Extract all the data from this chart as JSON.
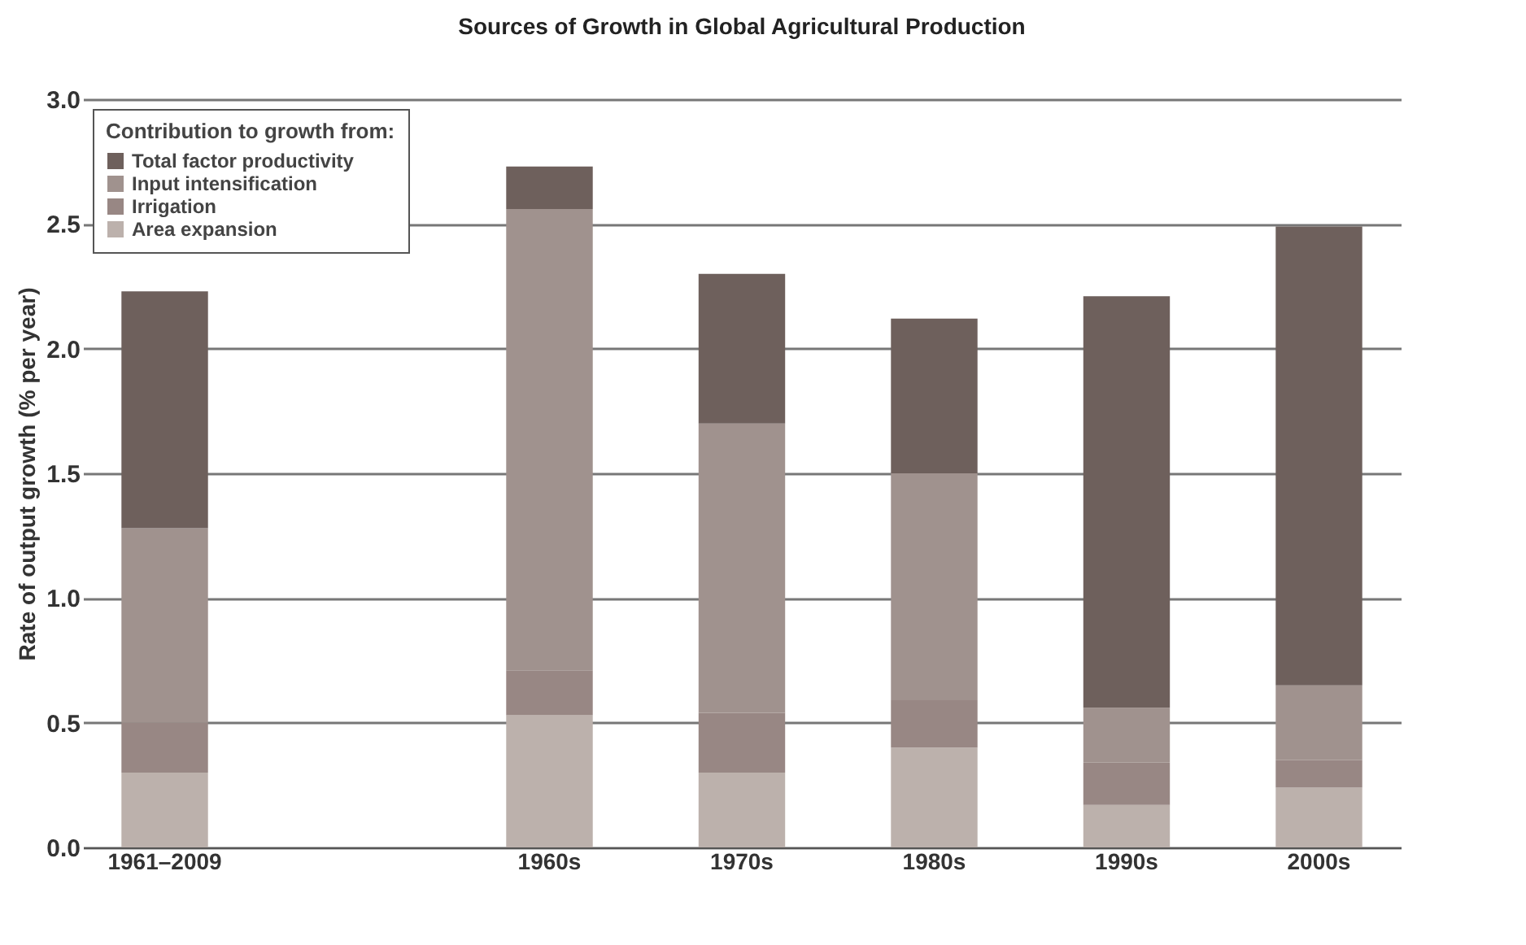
{
  "chart_data": {
    "type": "bar",
    "stacked": true,
    "title": "Sources of Growth in Global Agricultural Production",
    "ylabel": "Rate of output growth (% per year)",
    "legend_title": "Contribution to growth from:",
    "legend": "top left",
    "grid": "y",
    "categories": [
      "1961–2009",
      null,
      "1960s",
      "1970s",
      "1980s",
      "1990s",
      "2000s"
    ],
    "ylim": [
      0,
      3
    ],
    "yticks": [
      {
        "value": 0,
        "label": "0.0"
      },
      {
        "value": 0.5,
        "label": "0.5"
      },
      {
        "value": 1,
        "label": "1.0"
      },
      {
        "value": 1.5,
        "label": "1.5"
      },
      {
        "value": 2,
        "label": "2.0"
      },
      {
        "value": 2.5,
        "label": "2.5"
      },
      {
        "value": 3,
        "label": "3.0"
      }
    ],
    "series": [
      {
        "name": "Area expansion",
        "color": "#bcb1ac",
        "values": [
          0.3,
          null,
          0.53,
          0.3,
          0.4,
          0.17,
          0.24
        ]
      },
      {
        "name": "Irrigation",
        "color": "#988784",
        "values": [
          0.2,
          null,
          0.18,
          0.24,
          0.19,
          0.17,
          0.11
        ]
      },
      {
        "name": "Input intensification",
        "color": "#a0928e",
        "values": [
          0.78,
          null,
          1.85,
          1.16,
          0.91,
          0.22,
          0.3
        ]
      },
      {
        "name": "Total factor productivity",
        "color": "#6e605c",
        "values": [
          0.95,
          null,
          0.17,
          0.6,
          0.62,
          1.65,
          1.84
        ]
      }
    ]
  }
}
